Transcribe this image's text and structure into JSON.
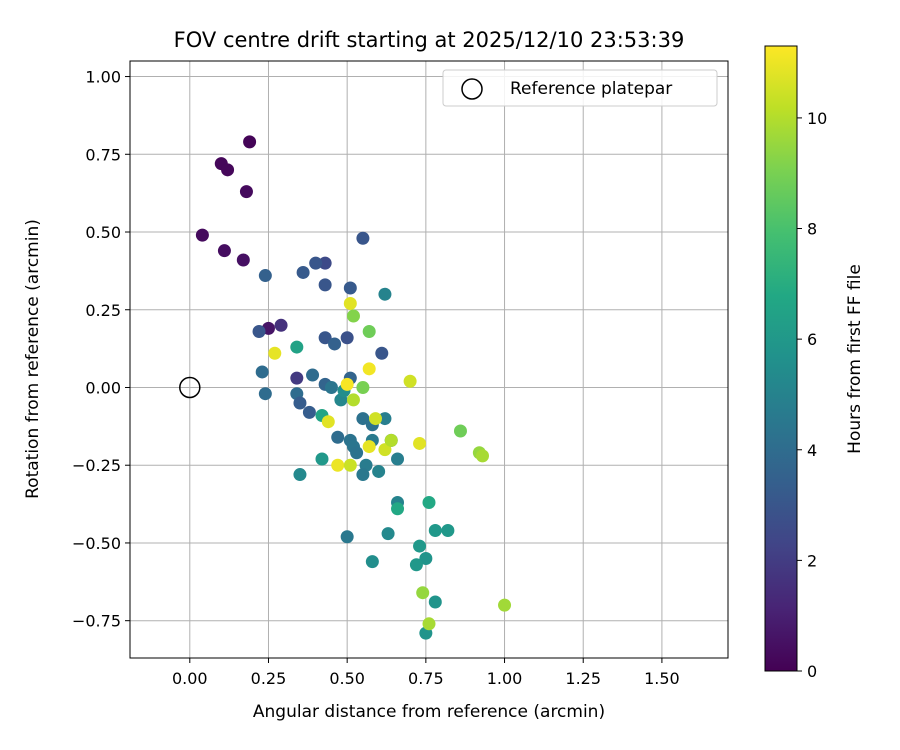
{
  "chart_data": {
    "type": "scatter",
    "title": "FOV centre drift starting at 2025/12/10 23:53:39",
    "xlabel": "Angular distance from reference (arcmin)",
    "ylabel": "Rotation from reference (arcmin)",
    "xlim": [
      -0.19,
      1.71
    ],
    "ylim": [
      -0.87,
      1.05
    ],
    "xticks": [
      0.0,
      0.25,
      0.5,
      0.75,
      1.0,
      1.25,
      1.5
    ],
    "xtick_labels": [
      "0.00",
      "0.25",
      "0.50",
      "0.75",
      "1.00",
      "1.25",
      "1.50"
    ],
    "yticks": [
      -0.75,
      -0.5,
      -0.25,
      0.0,
      0.25,
      0.5,
      0.75,
      1.0
    ],
    "ytick_labels": [
      "−0.75",
      "−0.50",
      "−0.25",
      "0.00",
      "0.25",
      "0.50",
      "0.75",
      "1.00"
    ],
    "grid": true,
    "legend": {
      "location": "top-right",
      "entries": [
        {
          "label": "Reference platepar",
          "marker": "open-circle"
        }
      ]
    },
    "reference_point": {
      "x": 0.0,
      "y": 0.0
    },
    "colorbar": {
      "label": "Hours from first FF file",
      "range": [
        0,
        11.3
      ],
      "ticks": [
        0,
        2,
        4,
        6,
        8,
        10
      ],
      "tick_labels": [
        "0",
        "2",
        "4",
        "6",
        "8",
        "10"
      ],
      "colormap": "viridis"
    },
    "points": [
      {
        "x": 0.19,
        "y": 0.79,
        "hours": 0.1
      },
      {
        "x": 0.1,
        "y": 0.72,
        "hours": 0.2
      },
      {
        "x": 0.12,
        "y": 0.7,
        "hours": 0.2
      },
      {
        "x": 0.18,
        "y": 0.63,
        "hours": 0.3
      },
      {
        "x": 0.04,
        "y": 0.49,
        "hours": 0.3
      },
      {
        "x": 0.11,
        "y": 0.44,
        "hours": 0.4
      },
      {
        "x": 0.17,
        "y": 0.41,
        "hours": 0.5
      },
      {
        "x": 0.25,
        "y": 0.19,
        "hours": 0.6
      },
      {
        "x": 0.29,
        "y": 0.2,
        "hours": 1.6
      },
      {
        "x": 0.34,
        "y": 0.03,
        "hours": 1.9
      },
      {
        "x": 0.55,
        "y": 0.48,
        "hours": 3.0
      },
      {
        "x": 0.43,
        "y": 0.4,
        "hours": 2.5
      },
      {
        "x": 0.4,
        "y": 0.4,
        "hours": 3.0
      },
      {
        "x": 0.36,
        "y": 0.37,
        "hours": 3.2
      },
      {
        "x": 0.24,
        "y": 0.36,
        "hours": 3.5
      },
      {
        "x": 0.43,
        "y": 0.33,
        "hours": 3.0
      },
      {
        "x": 0.51,
        "y": 0.32,
        "hours": 3.2
      },
      {
        "x": 0.62,
        "y": 0.3,
        "hours": 5.0
      },
      {
        "x": 0.22,
        "y": 0.18,
        "hours": 3.0
      },
      {
        "x": 0.43,
        "y": 0.16,
        "hours": 3.0
      },
      {
        "x": 0.46,
        "y": 0.14,
        "hours": 3.5
      },
      {
        "x": 0.5,
        "y": 0.16,
        "hours": 2.8
      },
      {
        "x": 0.61,
        "y": 0.11,
        "hours": 3.0
      },
      {
        "x": 0.34,
        "y": 0.13,
        "hours": 6.5
      },
      {
        "x": 0.23,
        "y": 0.05,
        "hours": 4.0
      },
      {
        "x": 0.39,
        "y": 0.04,
        "hours": 4.0
      },
      {
        "x": 0.43,
        "y": 0.01,
        "hours": 3.6
      },
      {
        "x": 0.45,
        "y": 0.0,
        "hours": 4.4
      },
      {
        "x": 0.51,
        "y": 0.03,
        "hours": 3.6
      },
      {
        "x": 0.24,
        "y": -0.02,
        "hours": 4.0
      },
      {
        "x": 0.34,
        "y": -0.02,
        "hours": 4.0
      },
      {
        "x": 0.35,
        "y": -0.05,
        "hours": 3.3
      },
      {
        "x": 0.38,
        "y": -0.08,
        "hours": 3.3
      },
      {
        "x": 0.48,
        "y": -0.04,
        "hours": 5.2
      },
      {
        "x": 0.49,
        "y": -0.01,
        "hours": 5.5
      },
      {
        "x": 0.42,
        "y": -0.09,
        "hours": 6.6
      },
      {
        "x": 0.55,
        "y": -0.1,
        "hours": 4.2
      },
      {
        "x": 0.58,
        "y": -0.12,
        "hours": 4.2
      },
      {
        "x": 0.62,
        "y": -0.1,
        "hours": 4.8
      },
      {
        "x": 0.47,
        "y": -0.16,
        "hours": 4.0
      },
      {
        "x": 0.51,
        "y": -0.17,
        "hours": 4.3
      },
      {
        "x": 0.52,
        "y": -0.19,
        "hours": 4.4
      },
      {
        "x": 0.53,
        "y": -0.21,
        "hours": 4.3
      },
      {
        "x": 0.58,
        "y": -0.17,
        "hours": 4.6
      },
      {
        "x": 0.64,
        "y": -0.17,
        "hours": 4.6
      },
      {
        "x": 0.66,
        "y": -0.23,
        "hours": 4.8
      },
      {
        "x": 0.42,
        "y": -0.23,
        "hours": 6.0
      },
      {
        "x": 0.56,
        "y": -0.25,
        "hours": 4.7
      },
      {
        "x": 0.55,
        "y": -0.28,
        "hours": 4.5
      },
      {
        "x": 0.6,
        "y": -0.27,
        "hours": 5.0
      },
      {
        "x": 0.35,
        "y": -0.28,
        "hours": 5.3
      },
      {
        "x": 0.5,
        "y": -0.48,
        "hours": 4.5
      },
      {
        "x": 0.63,
        "y": -0.47,
        "hours": 5.3
      },
      {
        "x": 0.66,
        "y": -0.37,
        "hours": 5.0
      },
      {
        "x": 0.66,
        "y": -0.39,
        "hours": 6.8
      },
      {
        "x": 0.76,
        "y": -0.37,
        "hours": 6.8
      },
      {
        "x": 0.78,
        "y": -0.46,
        "hours": 6.0
      },
      {
        "x": 0.82,
        "y": -0.46,
        "hours": 6.0
      },
      {
        "x": 0.73,
        "y": -0.51,
        "hours": 6.0
      },
      {
        "x": 0.75,
        "y": -0.55,
        "hours": 5.8
      },
      {
        "x": 0.72,
        "y": -0.57,
        "hours": 6.0
      },
      {
        "x": 0.58,
        "y": -0.56,
        "hours": 5.5
      },
      {
        "x": 0.78,
        "y": -0.69,
        "hours": 5.8
      },
      {
        "x": 0.75,
        "y": -0.79,
        "hours": 5.8
      },
      {
        "x": 0.51,
        "y": 0.27,
        "hours": 10.8
      },
      {
        "x": 0.52,
        "y": 0.23,
        "hours": 9.2
      },
      {
        "x": 0.57,
        "y": 0.18,
        "hours": 8.8
      },
      {
        "x": 0.27,
        "y": 0.11,
        "hours": 10.9
      },
      {
        "x": 0.57,
        "y": 0.06,
        "hours": 11.1
      },
      {
        "x": 0.5,
        "y": 0.01,
        "hours": 11.2
      },
      {
        "x": 0.55,
        "y": 0.0,
        "hours": 9.0
      },
      {
        "x": 0.52,
        "y": -0.04,
        "hours": 10.0
      },
      {
        "x": 0.7,
        "y": 0.02,
        "hours": 10.5
      },
      {
        "x": 0.59,
        "y": -0.1,
        "hours": 10.5
      },
      {
        "x": 0.44,
        "y": -0.11,
        "hours": 10.8
      },
      {
        "x": 0.57,
        "y": -0.19,
        "hours": 10.9
      },
      {
        "x": 0.62,
        "y": -0.2,
        "hours": 10.5
      },
      {
        "x": 0.64,
        "y": -0.17,
        "hours": 10.0
      },
      {
        "x": 0.73,
        "y": -0.18,
        "hours": 10.8
      },
      {
        "x": 0.47,
        "y": -0.25,
        "hours": 11.0
      },
      {
        "x": 0.51,
        "y": -0.25,
        "hours": 10.4
      },
      {
        "x": 0.86,
        "y": -0.14,
        "hours": 8.8
      },
      {
        "x": 0.92,
        "y": -0.21,
        "hours": 9.5
      },
      {
        "x": 0.93,
        "y": -0.22,
        "hours": 9.8
      },
      {
        "x": 0.74,
        "y": -0.66,
        "hours": 9.5
      },
      {
        "x": 0.76,
        "y": -0.76,
        "hours": 9.8
      },
      {
        "x": 1.0,
        "y": -0.7,
        "hours": 9.7
      }
    ]
  }
}
